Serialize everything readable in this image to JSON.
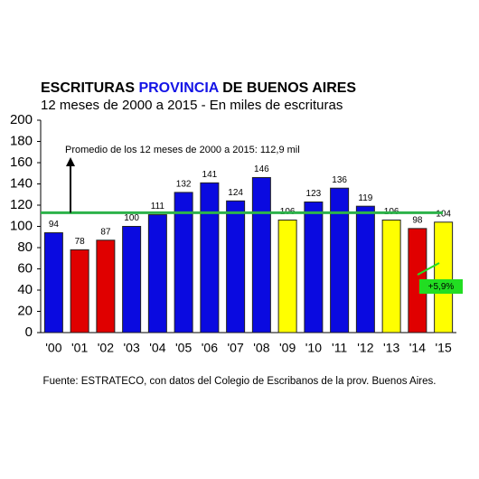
{
  "chart_data": {
    "type": "bar",
    "title_parts": [
      {
        "text": "ESCRITURAS ",
        "color": "#000000"
      },
      {
        "text": "PROVINCIA",
        "color": "#1414e6"
      },
      {
        "text": " DE BUENOS AIRES",
        "color": "#000000"
      }
    ],
    "subtitle": "12 meses de 2000 a 2015 - En miles de escrituras",
    "categories": [
      "'00",
      "'01",
      "'02",
      "'03",
      "'04",
      "'05",
      "'06",
      "'07",
      "'08",
      "'09",
      "'10",
      "'11",
      "'12",
      "'13",
      "'14",
      "'15"
    ],
    "values": [
      94,
      78,
      87,
      100,
      111,
      132,
      141,
      124,
      146,
      106,
      123,
      136,
      119,
      106,
      98,
      104
    ],
    "colors": [
      "#0a0ae0",
      "#e00000",
      "#e00000",
      "#0a0ae0",
      "#0a0ae0",
      "#0a0ae0",
      "#0a0ae0",
      "#0a0ae0",
      "#0a0ae0",
      "#ffff00",
      "#0a0ae0",
      "#0a0ae0",
      "#0a0ae0",
      "#ffff00",
      "#e00000",
      "#ffff00"
    ],
    "ylim": [
      0,
      200
    ],
    "yticks": [
      0,
      20,
      40,
      60,
      80,
      100,
      120,
      140,
      160,
      180,
      200
    ],
    "grid": false,
    "reference_line": {
      "value": 112.9,
      "color": "#2db34a",
      "label": "Promedio de los 12 meses de 2000 a 2015: 112,9 mil"
    },
    "change_annotation": {
      "text": "+5,9%",
      "color": "#22dd22"
    },
    "source": "Fuente: ESTRATECO, con datos del Colegio de Escribanos de la prov. Buenos Aires."
  }
}
